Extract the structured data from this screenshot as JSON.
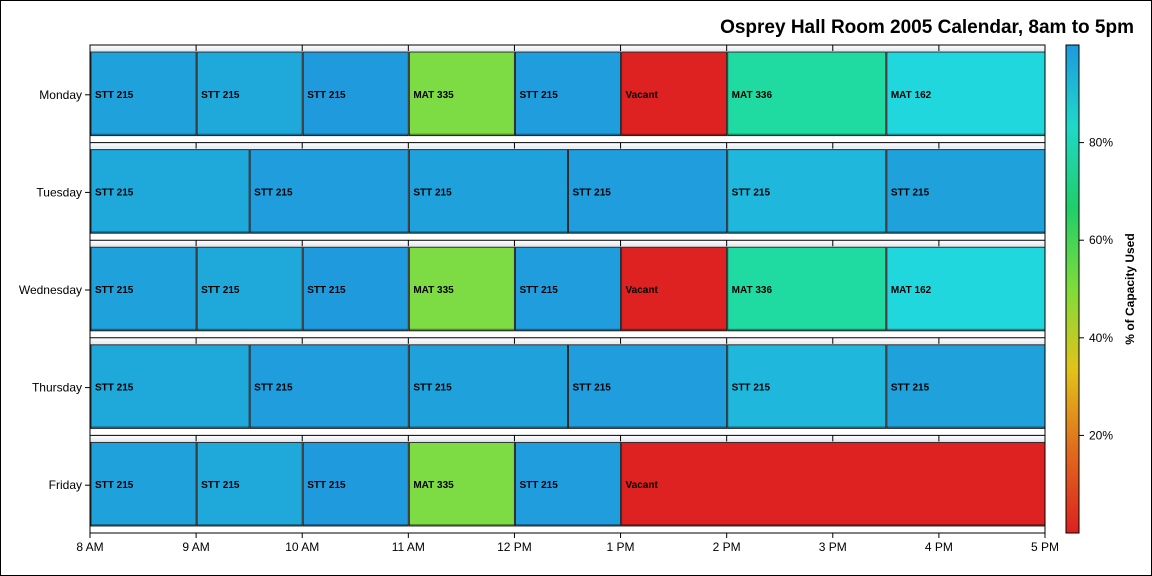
{
  "chart_data": {
    "type": "timeline",
    "title": "Osprey Hall Room 2005 Calendar, 8am to 5pm",
    "x_ticks": [
      "8 AM",
      "9 AM",
      "10 AM",
      "11 AM",
      "12 PM",
      "1 PM",
      "2 PM",
      "3 PM",
      "4 PM",
      "5 PM"
    ],
    "x_range_hours": [
      8,
      17
    ],
    "colorbar": {
      "title": "% of Capacity Used",
      "ticks": [
        "20%",
        "40%",
        "60%",
        "80%"
      ],
      "tick_values": [
        20,
        40,
        60,
        80
      ],
      "range": [
        0,
        100
      ],
      "stops": [
        "#dd2020",
        "#e06a1e",
        "#e3c21a",
        "#7fdc3a",
        "#1fce6a",
        "#20d8c8",
        "#1e9ade"
      ]
    },
    "days": [
      {
        "name": "Monday",
        "blocks": [
          {
            "start": 8,
            "end": 9,
            "label": "STT 215",
            "color": "#1fa2db"
          },
          {
            "start": 9,
            "end": 10,
            "label": "STT 215",
            "color": "#1fa8da"
          },
          {
            "start": 10,
            "end": 11,
            "label": "STT 215",
            "color": "#1f9bdd"
          },
          {
            "start": 11,
            "end": 12,
            "label": "MAT 335",
            "color": "#7ddb43"
          },
          {
            "start": 12,
            "end": 13,
            "label": "STT 215",
            "color": "#1f9ddd"
          },
          {
            "start": 13,
            "end": 14,
            "label": "Vacant",
            "color": "#de2222"
          },
          {
            "start": 14,
            "end": 15.5,
            "label": "MAT 336",
            "color": "#1fdba1"
          },
          {
            "start": 15.5,
            "end": 17,
            "label": "MAT 162",
            "color": "#21d7de"
          }
        ]
      },
      {
        "name": "Tuesday",
        "blocks": [
          {
            "start": 8,
            "end": 9.5,
            "label": "STT 215",
            "color": "#1fa8da"
          },
          {
            "start": 9.5,
            "end": 11,
            "label": "STT 215",
            "color": "#1f9ddd"
          },
          {
            "start": 11,
            "end": 12.5,
            "label": "STT 215",
            "color": "#1fa2dc"
          },
          {
            "start": 12.5,
            "end": 14,
            "label": "STT 215",
            "color": "#1f9ddd"
          },
          {
            "start": 14,
            "end": 15.5,
            "label": "STT 215",
            "color": "#1fb7dc"
          },
          {
            "start": 15.5,
            "end": 17,
            "label": "STT 215",
            "color": "#1fa2dc"
          }
        ]
      },
      {
        "name": "Wednesday",
        "blocks": [
          {
            "start": 8,
            "end": 9,
            "label": "STT 215",
            "color": "#1fa2db"
          },
          {
            "start": 9,
            "end": 10,
            "label": "STT 215",
            "color": "#1fa8da"
          },
          {
            "start": 10,
            "end": 11,
            "label": "STT 215",
            "color": "#1f9bdd"
          },
          {
            "start": 11,
            "end": 12,
            "label": "MAT 335",
            "color": "#7ddb43"
          },
          {
            "start": 12,
            "end": 13,
            "label": "STT 215",
            "color": "#1f9ddd"
          },
          {
            "start": 13,
            "end": 14,
            "label": "Vacant",
            "color": "#de2222"
          },
          {
            "start": 14,
            "end": 15.5,
            "label": "MAT 336",
            "color": "#1fdba1"
          },
          {
            "start": 15.5,
            "end": 17,
            "label": "MAT 162",
            "color": "#21d7de"
          }
        ]
      },
      {
        "name": "Thursday",
        "blocks": [
          {
            "start": 8,
            "end": 9.5,
            "label": "STT 215",
            "color": "#1fa8da"
          },
          {
            "start": 9.5,
            "end": 11,
            "label": "STT 215",
            "color": "#1f9ddd"
          },
          {
            "start": 11,
            "end": 12.5,
            "label": "STT 215",
            "color": "#1fa2dc"
          },
          {
            "start": 12.5,
            "end": 14,
            "label": "STT 215",
            "color": "#1f9ddd"
          },
          {
            "start": 14,
            "end": 15.5,
            "label": "STT 215",
            "color": "#1fb7dc"
          },
          {
            "start": 15.5,
            "end": 17,
            "label": "STT 215",
            "color": "#1fa2dc"
          }
        ]
      },
      {
        "name": "Friday",
        "blocks": [
          {
            "start": 8,
            "end": 9,
            "label": "STT 215",
            "color": "#1fa2db"
          },
          {
            "start": 9,
            "end": 10,
            "label": "STT 215",
            "color": "#1fa8da"
          },
          {
            "start": 10,
            "end": 11,
            "label": "STT 215",
            "color": "#1f9bdd"
          },
          {
            "start": 11,
            "end": 12,
            "label": "MAT 335",
            "color": "#7ddb43"
          },
          {
            "start": 12,
            "end": 13,
            "label": "STT 215",
            "color": "#1f9ddd"
          },
          {
            "start": 13,
            "end": 17,
            "label": "Vacant",
            "color": "#de2222"
          }
        ]
      }
    ]
  }
}
